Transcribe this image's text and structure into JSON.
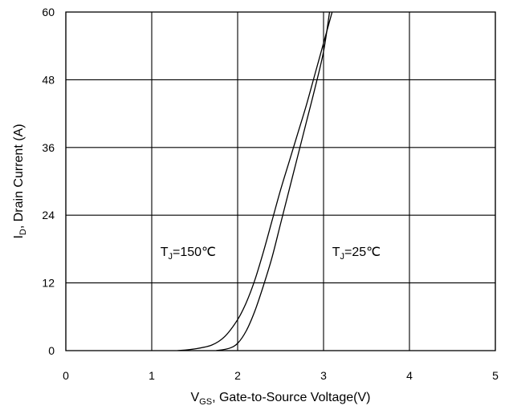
{
  "chart_data": {
    "type": "line",
    "title": "",
    "xlabel_main": "V",
    "xlabel_sub": "GS",
    "xlabel_rest": ", Gate-to-Source  Voltage(V)",
    "ylabel_main": "I",
    "ylabel_sub": "D",
    "ylabel_rest": ", Drain Current (A)",
    "xlim": [
      0,
      5
    ],
    "ylim": [
      0,
      60
    ],
    "xticks": [
      0,
      1,
      2,
      3,
      4,
      5
    ],
    "yticks": [
      0,
      12,
      24,
      36,
      48,
      60
    ],
    "grid": true,
    "annotations": [
      {
        "main": "T",
        "sub": "J",
        "rest": "=150℃",
        "x": 1.1,
        "y": 16.8
      },
      {
        "main": "T",
        "sub": "J",
        "rest": "=25℃",
        "x": 3.1,
        "y": 16.8
      }
    ],
    "series": [
      {
        "x": [
          1.3,
          1.5,
          1.7,
          1.85,
          2.0,
          2.1,
          2.2,
          2.3,
          2.4,
          2.5,
          2.6,
          2.7,
          2.8,
          2.9,
          3.0,
          3.1
        ],
        "y": [
          0,
          0.3,
          1.0,
          2.5,
          5.5,
          8.5,
          12.5,
          17.5,
          23.0,
          28.5,
          33.5,
          38.5,
          43.5,
          49.0,
          54.5,
          60
        ]
      },
      {
        "x": [
          1.75,
          1.9,
          2.0,
          2.1,
          2.2,
          2.3,
          2.4,
          2.5,
          2.6,
          2.7,
          2.8,
          2.9,
          3.0,
          3.07
        ],
        "y": [
          0,
          0.4,
          1.3,
          3.5,
          7.0,
          11.5,
          16.5,
          22.5,
          28.5,
          34.5,
          40.5,
          46.5,
          53.0,
          60
        ]
      }
    ]
  }
}
